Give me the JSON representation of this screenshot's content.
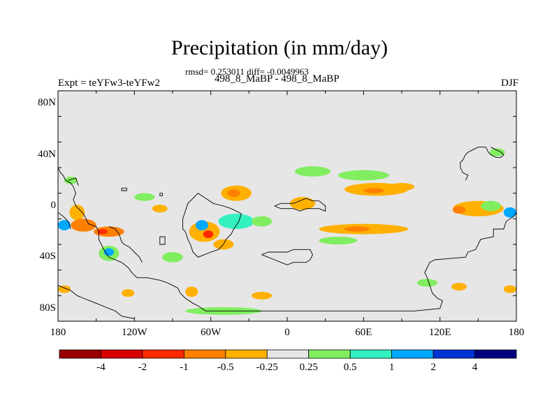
{
  "title": "Precipitation (in mm/day)",
  "stats_line": "rmsd= 0.253011 diff= -0.0049963",
  "experiment_label": "Expt = teYFw3-teYFw2",
  "case_label": "498_8_MaBP - 498_8_MaBP",
  "season": "DJF",
  "map": {
    "projection": "cylindrical-equidistant",
    "lon_range": [
      -180,
      180
    ],
    "lat_range": [
      -90,
      90
    ],
    "background_color": "#e6e6e6",
    "x_ticks": [
      {
        "lon": -180,
        "label": "180"
      },
      {
        "lon": -120,
        "label": "120W"
      },
      {
        "lon": -60,
        "label": "60W"
      },
      {
        "lon": 0,
        "label": "0"
      },
      {
        "lon": 60,
        "label": "60E"
      },
      {
        "lon": 120,
        "label": "120E"
      },
      {
        "lon": 180,
        "label": "180"
      }
    ],
    "y_ticks": [
      {
        "lat": 80,
        "label": "80N"
      },
      {
        "lat": 40,
        "label": "40N"
      },
      {
        "lat": 0,
        "label": "0"
      },
      {
        "lat": -40,
        "label": "40S"
      },
      {
        "lat": -80,
        "label": "80S"
      }
    ],
    "anomaly_patches": [
      {
        "lon": 20,
        "lat": 27,
        "dlon": 14,
        "dlat": 4,
        "cls": "+0.25"
      },
      {
        "lon": 60,
        "lat": 24,
        "dlon": 20,
        "dlat": 4,
        "cls": "+0.25"
      },
      {
        "lon": 70,
        "lat": 13,
        "dlon": 25,
        "dlat": 5,
        "cls": "-0.25"
      },
      {
        "lon": 68,
        "lat": 12,
        "dlon": 8,
        "dlat": 2,
        "cls": "-0.5"
      },
      {
        "lon": 90,
        "lat": 15,
        "dlon": 10,
        "dlat": 3,
        "cls": "-0.25"
      },
      {
        "lon": 12,
        "lat": 2,
        "dlon": 10,
        "dlat": 5,
        "cls": "-0.25"
      },
      {
        "lon": 60,
        "lat": -18,
        "dlon": 35,
        "dlat": 4,
        "cls": "-0.25"
      },
      {
        "lon": 55,
        "lat": -18,
        "dlon": 10,
        "dlat": 2,
        "cls": "-0.5"
      },
      {
        "lon": 40,
        "lat": -27,
        "dlon": 15,
        "dlat": 3,
        "cls": "+0.25"
      },
      {
        "lon": -40,
        "lat": 10,
        "dlon": 12,
        "dlat": 6,
        "cls": "-0.25"
      },
      {
        "lon": -42,
        "lat": 10,
        "dlon": 5,
        "dlat": 3,
        "cls": "-0.5"
      },
      {
        "lon": -40,
        "lat": -12,
        "dlon": 14,
        "dlat": 6,
        "cls": "+0.5"
      },
      {
        "lon": -20,
        "lat": -12,
        "dlon": 8,
        "dlat": 4,
        "cls": "+0.25"
      },
      {
        "lon": -65,
        "lat": -20,
        "dlon": 12,
        "dlat": 8,
        "cls": "-0.25"
      },
      {
        "lon": -67,
        "lat": -15,
        "dlon": 5,
        "dlat": 4,
        "cls": "+1"
      },
      {
        "lon": -62,
        "lat": -22,
        "dlon": 4,
        "dlat": 3,
        "cls": "-1"
      },
      {
        "lon": -50,
        "lat": -30,
        "dlon": 8,
        "dlat": 4,
        "cls": "-0.25"
      },
      {
        "lon": -90,
        "lat": -40,
        "dlon": 8,
        "dlat": 4,
        "cls": "+0.25"
      },
      {
        "lon": -170,
        "lat": 20,
        "dlon": 5,
        "dlat": 3,
        "cls": "+0.25"
      },
      {
        "lon": -165,
        "lat": -5,
        "dlon": 6,
        "dlat": 6,
        "cls": "-0.25"
      },
      {
        "lon": -160,
        "lat": -15,
        "dlon": 10,
        "dlat": 5,
        "cls": "-0.5"
      },
      {
        "lon": -175,
        "lat": -15,
        "dlon": 5,
        "dlat": 4,
        "cls": "+1"
      },
      {
        "lon": -140,
        "lat": -20,
        "dlon": 12,
        "dlat": 4,
        "cls": "-0.5"
      },
      {
        "lon": -145,
        "lat": -20,
        "dlon": 4,
        "dlat": 2,
        "cls": "-1"
      },
      {
        "lon": -140,
        "lat": -37,
        "dlon": 8,
        "dlat": 6,
        "cls": "+0.25"
      },
      {
        "lon": -140,
        "lat": -36,
        "dlon": 4,
        "dlat": 3,
        "cls": "+1"
      },
      {
        "lon": -112,
        "lat": 7,
        "dlon": 8,
        "dlat": 3,
        "cls": "+0.25"
      },
      {
        "lon": -100,
        "lat": -2,
        "dlon": 6,
        "dlat": 3,
        "cls": "-0.25"
      },
      {
        "lon": -175,
        "lat": -65,
        "dlon": 5,
        "dlat": 3,
        "cls": "-0.25"
      },
      {
        "lon": -125,
        "lat": -68,
        "dlon": 5,
        "dlat": 3,
        "cls": "-0.25"
      },
      {
        "lon": -75,
        "lat": -67,
        "dlon": 5,
        "dlat": 4,
        "cls": "-0.25"
      },
      {
        "lon": -50,
        "lat": -82,
        "dlon": 30,
        "dlat": 3,
        "cls": "+0.25"
      },
      {
        "lon": -20,
        "lat": -70,
        "dlon": 8,
        "dlat": 3,
        "cls": "-0.25"
      },
      {
        "lon": 150,
        "lat": -2,
        "dlon": 20,
        "dlat": 6,
        "cls": "-0.25"
      },
      {
        "lon": 160,
        "lat": 0,
        "dlon": 8,
        "dlat": 4,
        "cls": "+0.25"
      },
      {
        "lon": 135,
        "lat": -3,
        "dlon": 5,
        "dlat": 3,
        "cls": "-0.5"
      },
      {
        "lon": 175,
        "lat": -5,
        "dlon": 5,
        "dlat": 4,
        "cls": "+1"
      },
      {
        "lon": 165,
        "lat": 42,
        "dlon": 6,
        "dlat": 3,
        "cls": "+0.25"
      },
      {
        "lon": 110,
        "lat": -60,
        "dlon": 8,
        "dlat": 3,
        "cls": "+0.25"
      },
      {
        "lon": 135,
        "lat": -63,
        "dlon": 6,
        "dlat": 3,
        "cls": "-0.25"
      },
      {
        "lon": 175,
        "lat": -65,
        "dlon": 5,
        "dlat": 3,
        "cls": "-0.25"
      }
    ],
    "coastline_segments": [
      [
        [
          -180,
          30
        ],
        [
          -178,
          26
        ],
        [
          -176,
          24
        ],
        [
          -174,
          20
        ],
        [
          -170,
          18
        ],
        [
          -168,
          15
        ],
        [
          -166,
          10
        ],
        [
          -168,
          5
        ],
        [
          -166,
          0
        ],
        [
          -164,
          -2
        ],
        [
          -162,
          -4
        ],
        [
          -160,
          -6
        ],
        [
          -158,
          -10
        ],
        [
          -156,
          -14
        ],
        [
          -150,
          -16
        ],
        [
          -148,
          -20
        ],
        [
          -148,
          -26
        ],
        [
          -146,
          -30
        ],
        [
          -144,
          -34
        ],
        [
          -140,
          -40
        ],
        [
          -135,
          -42
        ],
        [
          -130,
          -44
        ],
        [
          -125,
          -48
        ],
        [
          -122,
          -52
        ],
        [
          -118,
          -56
        ],
        [
          -110,
          -56
        ],
        [
          -100,
          -58
        ],
        [
          -94,
          -60
        ],
        [
          -90,
          -62
        ],
        [
          -86,
          -64
        ],
        [
          -84,
          -68
        ],
        [
          -80,
          -72
        ],
        [
          -74,
          -76
        ],
        [
          -70,
          -78
        ],
        [
          -64,
          -82
        ],
        [
          20,
          -82
        ],
        [
          60,
          -82
        ],
        [
          100,
          -82
        ],
        [
          120,
          -80
        ],
        [
          122,
          -74
        ],
        [
          118,
          -72
        ],
        [
          114,
          -68
        ],
        [
          112,
          -62
        ],
        [
          110,
          -56
        ],
        [
          108,
          -52
        ],
        [
          110,
          -48
        ],
        [
          112,
          -44
        ],
        [
          116,
          -42
        ],
        [
          140,
          -40
        ],
        [
          142,
          -36
        ],
        [
          148,
          -34
        ],
        [
          150,
          -30
        ],
        [
          152,
          -26
        ],
        [
          162,
          -24
        ],
        [
          162,
          -18
        ],
        [
          170,
          -18
        ],
        [
          172,
          -12
        ],
        [
          178,
          -8
        ],
        [
          180,
          -5
        ]
      ],
      [
        [
          -180,
          -5
        ],
        [
          -176,
          -8
        ],
        [
          -172,
          -12
        ],
        [
          -170,
          -18
        ]
      ],
      [
        [
          -172,
          20
        ],
        [
          -166,
          22
        ],
        [
          -164,
          16
        ]
      ],
      [
        [
          -140,
          -16
        ],
        [
          -135,
          -18
        ],
        [
          -132,
          -22
        ],
        [
          -130,
          -28
        ],
        [
          -128,
          -30
        ],
        [
          -124,
          -32
        ],
        [
          -122,
          -34
        ],
        [
          -120,
          -36
        ],
        [
          -116,
          -40
        ],
        [
          -114,
          -44
        ]
      ],
      [
        [
          -82,
          -18
        ],
        [
          -80,
          -20
        ],
        [
          -78,
          -26
        ],
        [
          -76,
          -30
        ],
        [
          -74,
          -36
        ],
        [
          -70,
          -40
        ],
        [
          -65,
          -38
        ],
        [
          -60,
          -36
        ],
        [
          -54,
          -34
        ],
        [
          -50,
          -30
        ],
        [
          -48,
          -26
        ],
        [
          -44,
          -22
        ],
        [
          -42,
          -18
        ],
        [
          -38,
          -12
        ],
        [
          -36,
          -6
        ],
        [
          -44,
          -2
        ],
        [
          -50,
          0
        ],
        [
          -58,
          2
        ],
        [
          -64,
          6
        ],
        [
          -70,
          10
        ],
        [
          -74,
          6
        ],
        [
          -78,
          2
        ],
        [
          -80,
          -4
        ],
        [
          -82,
          -10
        ],
        [
          -82,
          -18
        ]
      ],
      [
        [
          -100,
          -24
        ],
        [
          -96,
          -24
        ],
        [
          -96,
          -30
        ],
        [
          -100,
          -30
        ],
        [
          -100,
          -24
        ]
      ],
      [
        [
          -20,
          -38
        ],
        [
          -15,
          -40
        ],
        [
          -10,
          -42
        ],
        [
          -5,
          -44
        ],
        [
          0,
          -46
        ],
        [
          5,
          -44
        ],
        [
          10,
          -44
        ],
        [
          15,
          -44
        ],
        [
          18,
          -42
        ],
        [
          20,
          -38
        ],
        [
          18,
          -34
        ],
        [
          12,
          -34
        ],
        [
          5,
          -34
        ],
        [
          0,
          -36
        ],
        [
          -5,
          -36
        ],
        [
          -10,
          -36
        ],
        [
          -15,
          -36
        ],
        [
          -20,
          -38
        ]
      ],
      [
        [
          -10,
          0
        ],
        [
          -5,
          -2
        ],
        [
          0,
          -2
        ],
        [
          5,
          -2
        ],
        [
          10,
          -4
        ],
        [
          15,
          -2
        ],
        [
          20,
          -2
        ],
        [
          25,
          -2
        ],
        [
          30,
          -4
        ],
        [
          30,
          0
        ],
        [
          25,
          4
        ],
        [
          20,
          4
        ],
        [
          15,
          6
        ],
        [
          10,
          4
        ],
        [
          5,
          2
        ],
        [
          0,
          2
        ],
        [
          -5,
          2
        ],
        [
          -10,
          0
        ]
      ],
      [
        [
          -130,
          14
        ],
        [
          -126,
          14
        ],
        [
          -126,
          12
        ],
        [
          -130,
          12
        ],
        [
          -130,
          14
        ]
      ],
      [
        [
          -100,
          10
        ],
        [
          -98,
          10
        ],
        [
          -98,
          8
        ],
        [
          -100,
          8
        ],
        [
          -100,
          10
        ]
      ],
      [
        [
          -180,
          -62
        ],
        [
          -175,
          -64
        ],
        [
          -170,
          -66
        ],
        [
          -165,
          -70
        ],
        [
          -160,
          -72
        ],
        [
          -155,
          -74
        ],
        [
          -150,
          -76
        ],
        [
          -145,
          -78
        ],
        [
          -140,
          -80
        ],
        [
          -135,
          -82
        ],
        [
          -130,
          -86
        ],
        [
          -120,
          -88
        ]
      ],
      [
        [
          140,
          20
        ],
        [
          142,
          24
        ],
        [
          138,
          26
        ],
        [
          136,
          30
        ],
        [
          136,
          34
        ],
        [
          138,
          36
        ],
        [
          140,
          40
        ],
        [
          142,
          42
        ],
        [
          146,
          44
        ],
        [
          150,
          46
        ],
        [
          156,
          46
        ],
        [
          158,
          42
        ],
        [
          160,
          40
        ],
        [
          164,
          38
        ],
        [
          168,
          38
        ],
        [
          170,
          40
        ],
        [
          168,
          42
        ],
        [
          164,
          44
        ],
        [
          160,
          46
        ]
      ]
    ]
  },
  "colorbar": {
    "levels": [
      "-4",
      "-2",
      "-1",
      "-0.5",
      "-0.25",
      "0.25",
      "0.5",
      "1",
      "2",
      "4"
    ],
    "colors": [
      "#9b0000",
      "#d70000",
      "#ff2a00",
      "#ff8000",
      "#ffb000",
      "#e6e6e6",
      "#80ee5e",
      "#33f0c0",
      "#00a8ff",
      "#0033d6",
      "#00007f"
    ]
  }
}
